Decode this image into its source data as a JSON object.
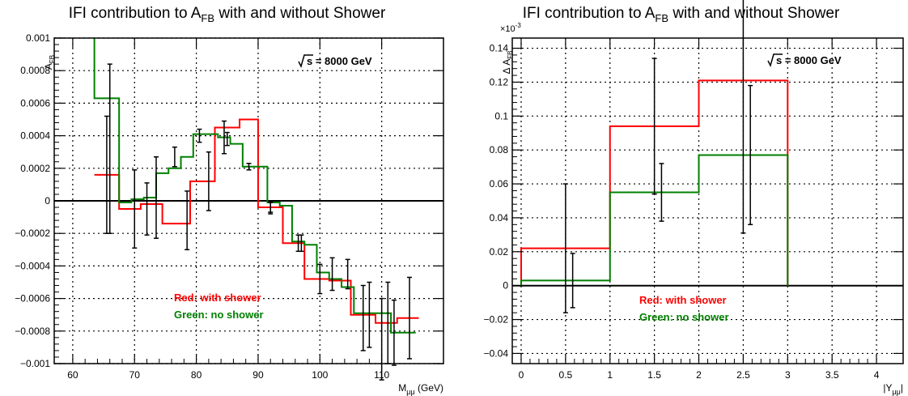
{
  "chart_data": [
    {
      "type": "line",
      "title_main": "IFI contribution to A",
      "title_sub": "FB",
      "title_tail": " with and without Shower",
      "xlabel": "M",
      "xlabel_sub": "μμ",
      "xlabel_unit": " (GeV)",
      "ylabel_main": "A",
      "ylabel_sub": "FB",
      "annotation_root": "s = 8000 GeV",
      "legend": [
        {
          "text": "Red: with shower",
          "color": "#ff0000"
        },
        {
          "text": "Green: no shower",
          "color": "#008000"
        }
      ],
      "xlim": [
        57,
        120
      ],
      "ylim": [
        -0.001,
        0.001
      ],
      "x_ticks": [
        60,
        70,
        80,
        90,
        100,
        110
      ],
      "x_tick_labels": [
        "60",
        "70",
        "80",
        "90",
        "100",
        "110"
      ],
      "y_ticks": [
        -0.001,
        -0.0008,
        -0.0006,
        -0.0004,
        -0.0002,
        0,
        0.0002,
        0.0004,
        0.0006,
        0.0008,
        0.001
      ],
      "y_tick_labels": [
        "−0.001",
        "−0.0008",
        "−0.0006",
        "−0.0004",
        "−0.0002",
        "0",
        "0.0002",
        "0.0004",
        "0.0006",
        "0.0008",
        "0.001"
      ],
      "grid": true,
      "series": [
        {
          "name": "Red: with shower",
          "color": "#ff0000",
          "bin_edges": [
            63.5,
            67.5,
            71,
            74.5,
            79,
            83,
            87,
            90,
            94,
            97.5,
            101.5,
            105,
            109,
            112.5,
            116
          ],
          "values": [
            0.00016,
            -5e-05,
            -2e-05,
            -0.00014,
            0.00012,
            0.00045,
            0.0005,
            -4e-05,
            -0.00026,
            -0.00048,
            -0.00049,
            -0.0007,
            -0.00075,
            -0.00072
          ],
          "points": [
            {
              "x": 65.5,
              "y": 0.00016,
              "err": 0.00036
            },
            {
              "x": 72.0,
              "y": -5e-05,
              "err": 0.00016
            },
            {
              "x": 78.5,
              "y": -0.00012,
              "err": 0.00018
            },
            {
              "x": 82.0,
              "y": 0.00012,
              "err": 0.00018
            },
            {
              "x": 85.0,
              "y": 0.00038,
              "err": 4e-05
            },
            {
              "x": 92.0,
              "y": -4e-05,
              "err": 3e-05
            },
            {
              "x": 97.0,
              "y": -0.00026,
              "err": 5e-05
            },
            {
              "x": 102.0,
              "y": -0.00045,
              "err": 0.0001
            },
            {
              "x": 108.0,
              "y": -0.0007,
              "err": 0.0002
            },
            {
              "x": 111.0,
              "y": -0.00075,
              "err": 0.00025
            },
            {
              "x": 114.5,
              "y": -0.00072,
              "err": 0.00025
            }
          ]
        },
        {
          "name": "Green: no shower",
          "color": "#008000",
          "bin_edges": [
            63.5,
            67.5,
            69.5,
            71.5,
            73.5,
            75.5,
            77.5,
            79.5,
            81.5,
            83.5,
            85.5,
            87.5,
            89.5,
            91.5,
            93.5,
            95.5,
            97.5,
            99.5,
            101.5,
            103.5,
            105.5,
            107.5,
            109.5,
            111.5,
            113.5,
            115.5
          ],
          "values": [
            0.00063,
            -1e-05,
            1e-05,
            2e-05,
            0.00017,
            0.0002,
            0.00027,
            0.00041,
            0.00041,
            0.00039,
            0.00035,
            0.00021,
            0.00021,
            -1e-05,
            -3e-05,
            -0.00025,
            -0.00027,
            -0.00044,
            -0.00048,
            -0.00053,
            -0.00069,
            -0.00069,
            -0.00069,
            -0.00081,
            -0.00081
          ],
          "first_bin_start_value": 0.001,
          "points": [
            {
              "x": 66.0,
              "y": 0.00032,
              "err": 0.00052
            },
            {
              "x": 70.0,
              "y": -5e-05,
              "err": 0.00024
            },
            {
              "x": 73.5,
              "y": 2e-05,
              "err": 0.00025
            },
            {
              "x": 76.5,
              "y": 0.00027,
              "err": 6e-05
            },
            {
              "x": 80.5,
              "y": 0.0004,
              "err": 4e-05
            },
            {
              "x": 84.5,
              "y": 0.00039,
              "err": 0.0001
            },
            {
              "x": 88.5,
              "y": 0.00021,
              "err": 2e-05
            },
            {
              "x": 92.0,
              "y": -4e-05,
              "err": 4e-05
            },
            {
              "x": 96.5,
              "y": -0.00026,
              "err": 5e-05
            },
            {
              "x": 100.0,
              "y": -0.00048,
              "err": 9e-05
            },
            {
              "x": 104.5,
              "y": -0.00045,
              "err": 9e-05
            },
            {
              "x": 107.0,
              "y": -0.00072,
              "err": 0.0002
            },
            {
              "x": 110.0,
              "y": -0.00085,
              "err": 0.00025
            },
            {
              "x": 112.0,
              "y": -0.00081,
              "err": 0.0002
            }
          ]
        }
      ]
    },
    {
      "type": "line",
      "title_main": "IFI contribution to A",
      "title_sub": "FB",
      "title_tail": " with and without Shower",
      "xlabel": "|Y",
      "xlabel_sub": "μμ",
      "xlabel_unit": "|",
      "ylabel_main": "Δ A",
      "ylabel_sub": "FB",
      "exponent_label": "×10",
      "exponent_power": "-3",
      "annotation_root": "s = 8000 GeV",
      "legend": [
        {
          "text": "Red: with shower",
          "color": "#ff0000"
        },
        {
          "text": "Green: no shower",
          "color": "#008000"
        }
      ],
      "xlim": [
        -0.1,
        4.3
      ],
      "ylim": [
        -0.046,
        0.146
      ],
      "x_ticks": [
        0,
        0.5,
        1,
        1.5,
        2,
        2.5,
        3,
        3.5,
        4
      ],
      "x_tick_labels": [
        "0",
        "0.5",
        "1",
        "1.5",
        "2",
        "2.5",
        "3",
        "3.5",
        "4"
      ],
      "y_ticks": [
        -0.04,
        -0.02,
        0,
        0.02,
        0.04,
        0.06,
        0.08,
        0.1,
        0.12,
        0.14
      ],
      "y_tick_labels": [
        "−0.04",
        "−0.02",
        "0",
        "0.02",
        "0.04",
        "0.06",
        "0.08",
        "0.1",
        "0.12",
        "0.14"
      ],
      "grid": true,
      "series": [
        {
          "name": "Red: with shower",
          "color": "#ff0000",
          "bin_edges": [
            0,
            1,
            2,
            3
          ],
          "values": [
            0.022,
            0.094,
            0.121
          ],
          "points": [
            {
              "x": 0.5,
              "y": 0.022,
              "err": 0.038
            },
            {
              "x": 1.5,
              "y": 0.094,
              "err": 0.04
            },
            {
              "x": 2.5,
              "y": 0.121,
              "err": 0.09
            }
          ]
        },
        {
          "name": "Green: no shower",
          "color": "#008000",
          "bin_edges": [
            0,
            1,
            2,
            3
          ],
          "values": [
            0.003,
            0.055,
            0.077
          ],
          "points": [
            {
              "x": 0.58,
              "y": 0.003,
              "err": 0.016
            },
            {
              "x": 1.58,
              "y": 0.055,
              "err": 0.017
            },
            {
              "x": 2.58,
              "y": 0.077,
              "err": 0.041
            }
          ]
        }
      ]
    }
  ]
}
